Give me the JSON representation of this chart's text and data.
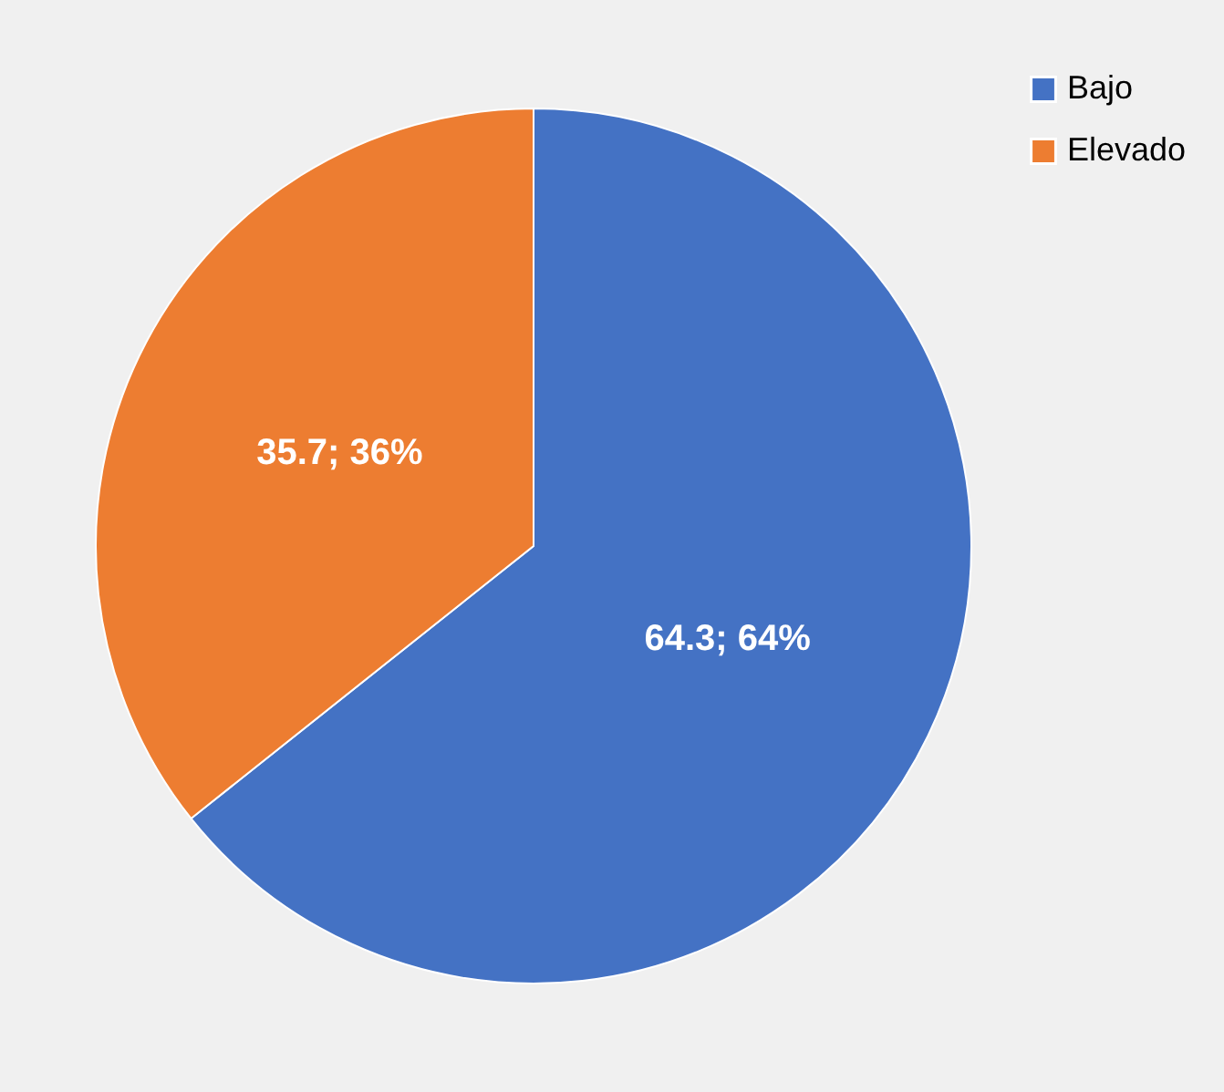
{
  "chart_data": {
    "type": "pie",
    "categories": [
      "Bajo",
      "Elevado"
    ],
    "values": [
      64.3,
      35.7
    ],
    "colors": [
      "#4472c4",
      "#ed7d31"
    ],
    "value_labels": [
      "64.3; 64%",
      "35.7; 36%"
    ],
    "legend": "right"
  }
}
